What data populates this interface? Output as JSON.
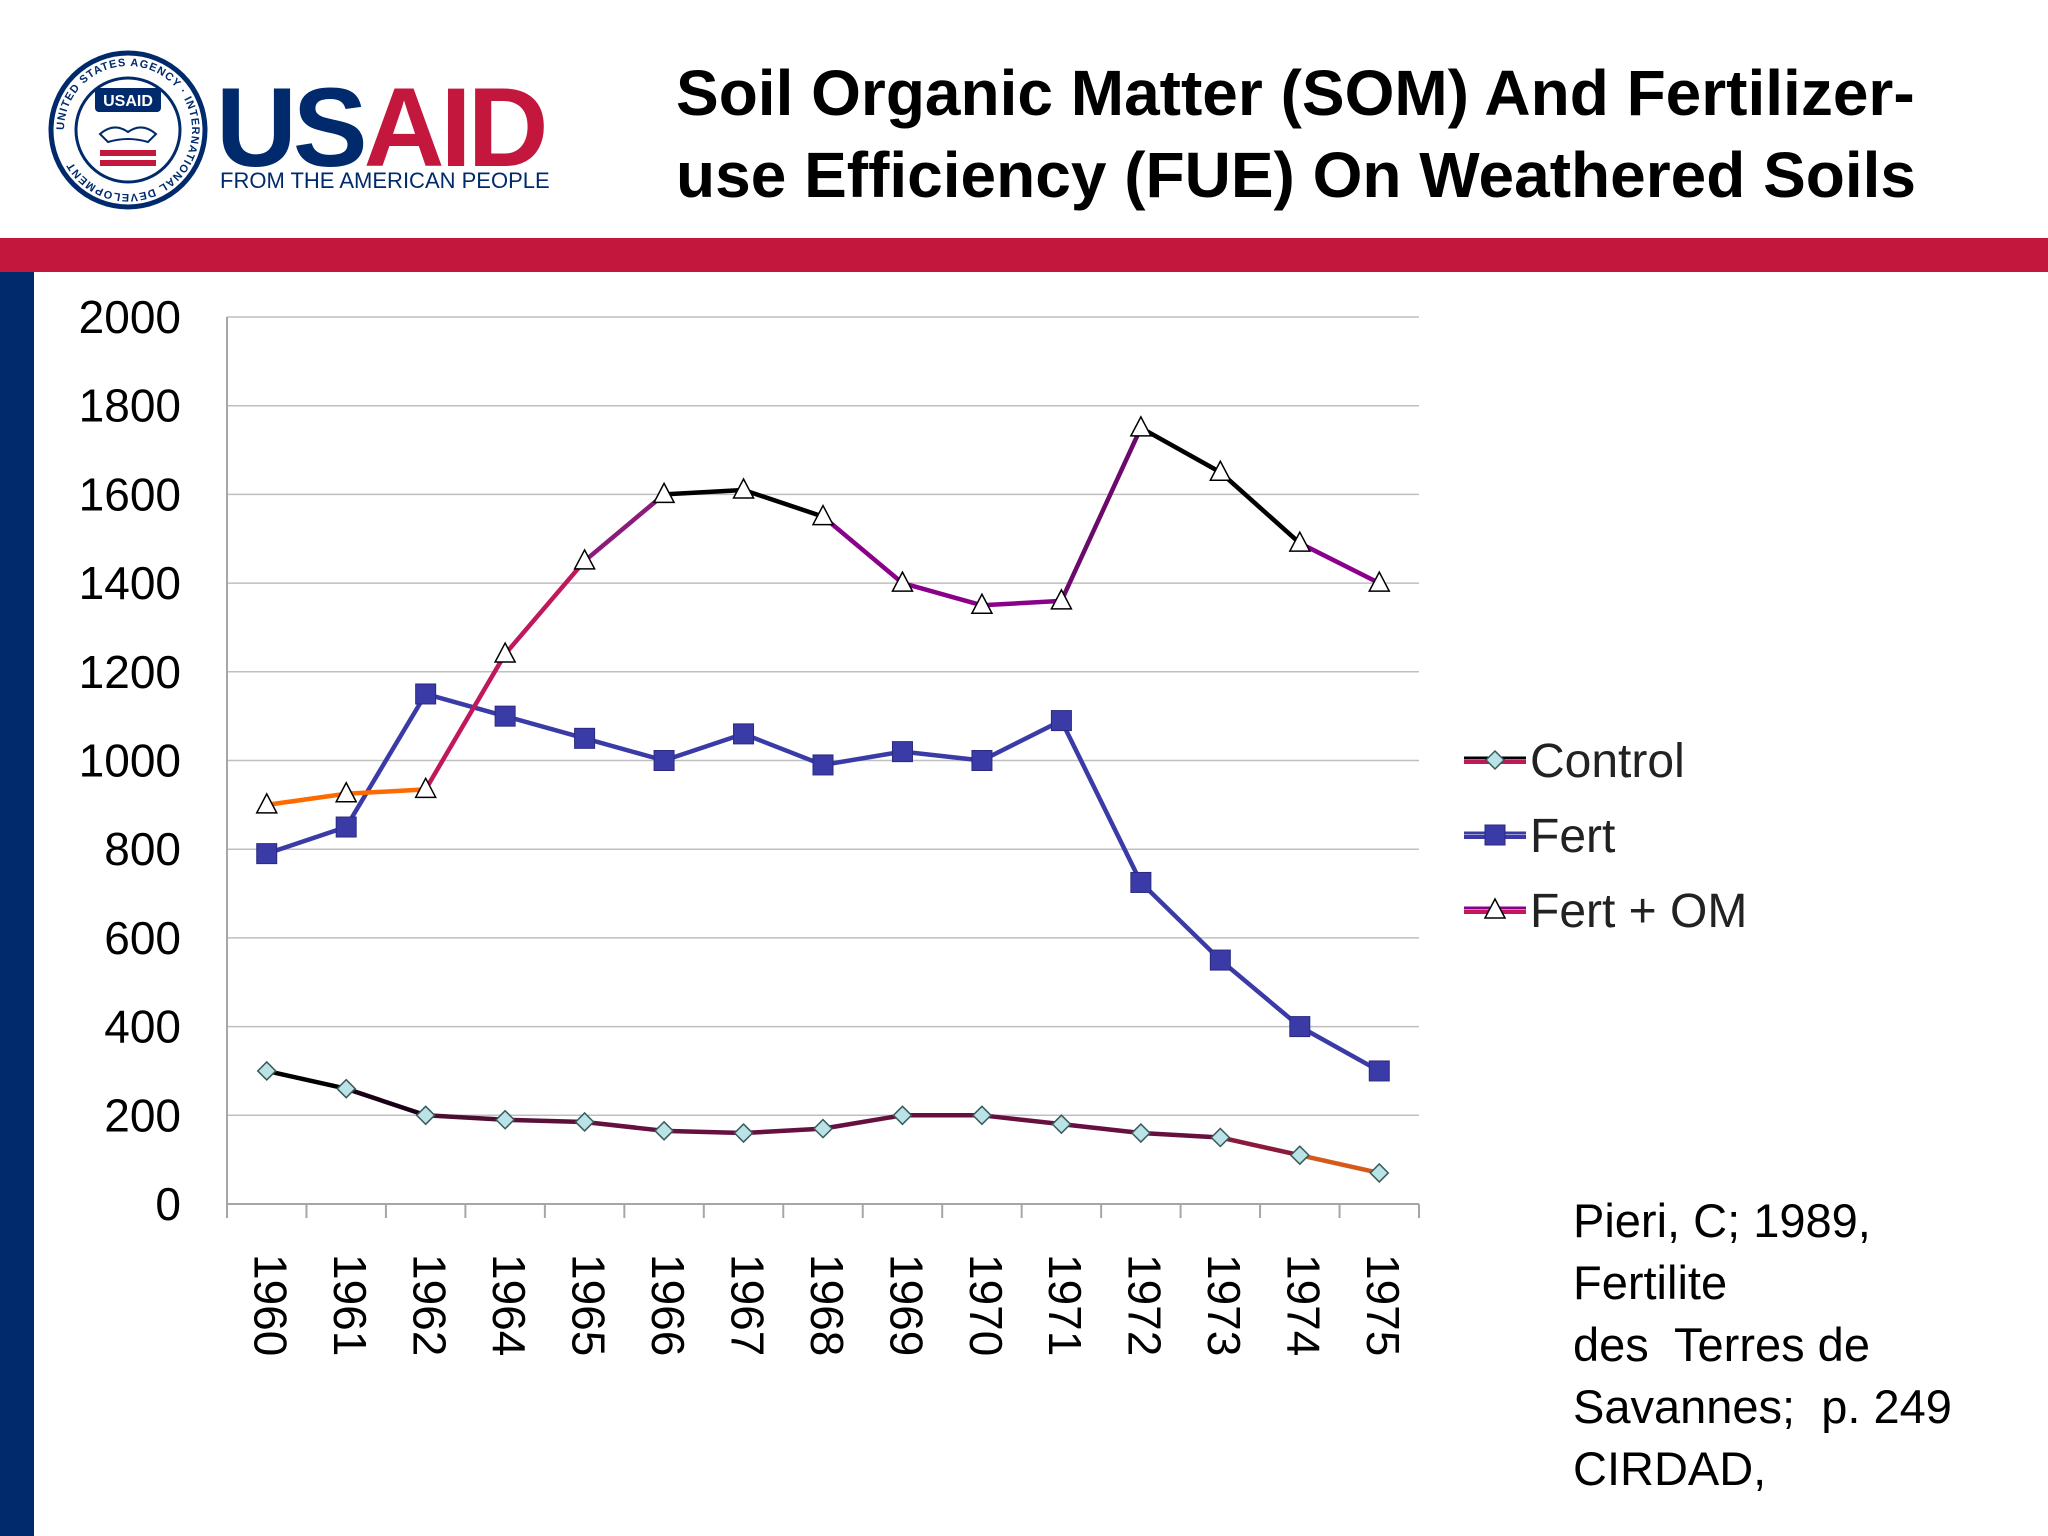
{
  "header": {
    "title_line1": "Soil Organic Matter (SOM) And Fertilizer-",
    "title_line2": "use Efficiency (FUE) On Weathered Soils",
    "logo": {
      "wordmark": "USAID",
      "tagline": "FROM THE AMERICAN PEOPLE",
      "seal_text": "UNITED STATES AGENCY · INTERNATIONAL DEVELOPMENT",
      "seal_badge": "USAID"
    }
  },
  "colors": {
    "red_bar": "#c3173e",
    "blue_bar": "#002a6c",
    "usaid_blue": "#002a6c",
    "usaid_red": "#c3173e",
    "fert_series": "#3b3ba8",
    "grid": "#bfbfbf"
  },
  "chart_data": {
    "type": "line",
    "categories": [
      "1960",
      "1961",
      "1962",
      "1964",
      "1965",
      "1966",
      "1967",
      "1968",
      "1969",
      "1970",
      "1971",
      "1972",
      "1973",
      "1974",
      "1975"
    ],
    "ylim": [
      0,
      2000
    ],
    "yticks": [
      0,
      200,
      400,
      600,
      800,
      1000,
      1200,
      1400,
      1600,
      1800,
      2000
    ],
    "grid": true,
    "legend_position": "right",
    "series": [
      {
        "name": "Control",
        "marker": "diamond",
        "values": [
          300,
          260,
          200,
          190,
          185,
          165,
          160,
          170,
          200,
          200,
          180,
          160,
          150,
          110,
          70
        ]
      },
      {
        "name": "Fert",
        "marker": "square",
        "values": [
          790,
          850,
          1150,
          1100,
          1050,
          1000,
          1060,
          990,
          1020,
          1000,
          1090,
          725,
          550,
          400,
          300
        ]
      },
      {
        "name": "Fert + OM",
        "marker": "triangle",
        "values": [
          900,
          925,
          935,
          1240,
          1450,
          1600,
          1610,
          1550,
          1400,
          1350,
          1360,
          1750,
          1650,
          1490,
          1400
        ]
      }
    ]
  },
  "citation": {
    "lines": [
      "Pieri, C; 1989,",
      "Fertilite",
      "des  Terres de",
      "Savannes;  p. 249",
      "CIRDAD,"
    ]
  }
}
